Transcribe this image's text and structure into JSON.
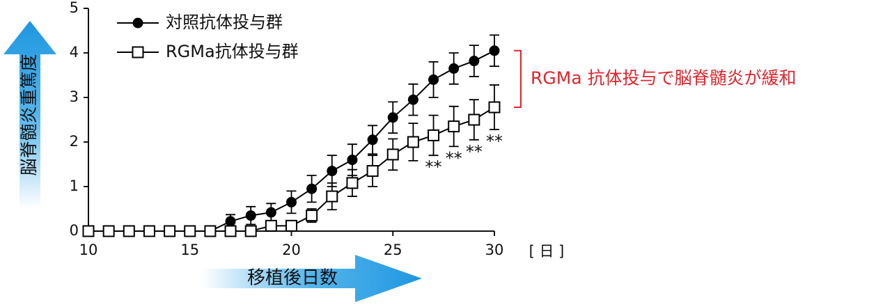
{
  "chart_data": {
    "type": "line",
    "x": [
      10,
      11,
      12,
      13,
      14,
      15,
      16,
      17,
      18,
      19,
      20,
      21,
      22,
      23,
      24,
      25,
      26,
      27,
      28,
      29,
      30
    ],
    "series": [
      {
        "name": "対照抗体投与群",
        "color": "#000000",
        "marker": "filled-circle",
        "values": [
          0,
          0,
          0,
          0,
          0,
          0,
          0,
          0.22,
          0.35,
          0.42,
          0.65,
          0.95,
          1.35,
          1.6,
          2.05,
          2.55,
          2.95,
          3.4,
          3.65,
          3.82,
          4.05
        ],
        "errors": [
          0,
          0,
          0,
          0,
          0,
          0,
          0,
          0.15,
          0.2,
          0.2,
          0.25,
          0.3,
          0.35,
          0.35,
          0.32,
          0.35,
          0.35,
          0.4,
          0.35,
          0.35,
          0.35
        ]
      },
      {
        "name": "RGMa抗体投与群",
        "color": "#000000",
        "marker": "open-square",
        "values": [
          0,
          0,
          0,
          0,
          0,
          0,
          0,
          0,
          0,
          0.12,
          0.12,
          0.35,
          0.78,
          1.08,
          1.35,
          1.72,
          2.0,
          2.15,
          2.35,
          2.5,
          2.78
        ],
        "errors": [
          0,
          0,
          0,
          0,
          0,
          0,
          0,
          0,
          0,
          0.05,
          0.05,
          0.15,
          0.3,
          0.3,
          0.35,
          0.35,
          0.42,
          0.45,
          0.45,
          0.45,
          0.5
        ]
      }
    ],
    "xlim": [
      10,
      30
    ],
    "xticks": [
      10,
      15,
      20,
      25,
      30
    ],
    "ylim": [
      0,
      5
    ],
    "yticks": [
      0,
      1,
      2,
      3,
      4,
      5
    ],
    "x_label": "移植後日数",
    "x_unit": "[ 日 ]",
    "y_label": "脳脊髄炎重篤度",
    "annotation": {
      "text": "RGMa 抗体投与で脳脊髄炎が緩和",
      "color": "#e0242b"
    },
    "significance": [
      {
        "x": 27,
        "text": "**"
      },
      {
        "x": 28,
        "text": "**"
      },
      {
        "x": 29,
        "text": "**"
      },
      {
        "x": 30,
        "text": "**"
      }
    ]
  }
}
